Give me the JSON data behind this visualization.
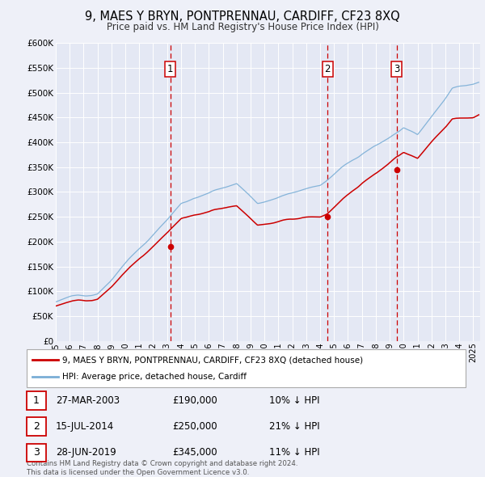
{
  "title": "9, MAES Y BRYN, PONTPRENNAU, CARDIFF, CF23 8XQ",
  "subtitle": "Price paid vs. HM Land Registry's House Price Index (HPI)",
  "ylim": [
    0,
    600000
  ],
  "yticks": [
    0,
    50000,
    100000,
    150000,
    200000,
    250000,
    300000,
    350000,
    400000,
    450000,
    500000,
    550000,
    600000
  ],
  "ytick_labels": [
    "£0",
    "£50K",
    "£100K",
    "£150K",
    "£200K",
    "£250K",
    "£300K",
    "£350K",
    "£400K",
    "£450K",
    "£500K",
    "£550K",
    "£600K"
  ],
  "xlim_start": 1995.0,
  "xlim_end": 2025.5,
  "xticks": [
    1995,
    1996,
    1997,
    1998,
    1999,
    2000,
    2001,
    2002,
    2003,
    2004,
    2005,
    2006,
    2007,
    2008,
    2009,
    2010,
    2011,
    2012,
    2013,
    2014,
    2015,
    2016,
    2017,
    2018,
    2019,
    2020,
    2021,
    2022,
    2023,
    2024,
    2025
  ],
  "background_color": "#eef0f8",
  "plot_bg_color": "#e4e8f4",
  "grid_color": "#ffffff",
  "red_line_color": "#cc0000",
  "blue_line_color": "#7aaed6",
  "marker_color": "#cc0000",
  "vline_color": "#cc0000",
  "sale_points": [
    {
      "year": 2003.23,
      "price": 190000,
      "label": "1"
    },
    {
      "year": 2014.54,
      "price": 250000,
      "label": "2"
    },
    {
      "year": 2019.49,
      "price": 345000,
      "label": "3"
    }
  ],
  "legend_house_label": "9, MAES Y BRYN, PONTPRENNAU, CARDIFF, CF23 8XQ (detached house)",
  "legend_hpi_label": "HPI: Average price, detached house, Cardiff",
  "table_rows": [
    {
      "num": "1",
      "date": "27-MAR-2003",
      "price": "£190,000",
      "pct": "10% ↓ HPI"
    },
    {
      "num": "2",
      "date": "15-JUL-2014",
      "price": "£250,000",
      "pct": "21% ↓ HPI"
    },
    {
      "num": "3",
      "date": "28-JUN-2019",
      "price": "£345,000",
      "pct": "11% ↓ HPI"
    }
  ],
  "footer": "Contains HM Land Registry data © Crown copyright and database right 2024.\nThis data is licensed under the Open Government Licence v3.0."
}
